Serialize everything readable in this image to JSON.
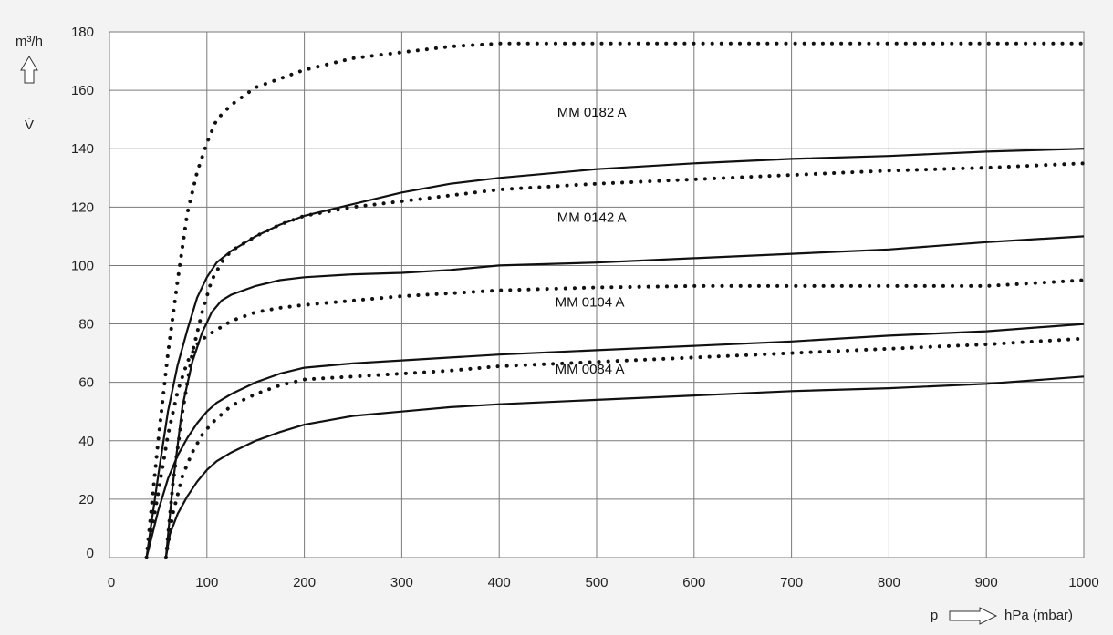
{
  "chart_data": {
    "type": "line",
    "ylabel": "m³/h",
    "ysymbol": "V̇",
    "xsymbol": "p",
    "xunit": "hPa (mbar)",
    "xlim": [
      0,
      1000
    ],
    "ylim": [
      0,
      180
    ],
    "xticks": [
      0,
      100,
      200,
      300,
      400,
      500,
      600,
      700,
      800,
      900,
      1000
    ],
    "yticks": [
      0,
      20,
      40,
      60,
      80,
      100,
      120,
      140,
      160,
      180
    ],
    "grid": true,
    "series": [
      {
        "name": "MM 0182 A",
        "style": "dotted",
        "x": [
          38,
          50,
          60,
          70,
          80,
          90,
          100,
          110,
          125,
          150,
          175,
          200,
          250,
          300,
          350,
          400,
          500,
          600,
          700,
          800,
          900,
          1000
        ],
        "y": [
          0,
          40,
          70,
          95,
          118,
          132,
          142,
          150,
          155,
          161,
          164,
          167,
          171,
          173,
          175,
          176,
          176,
          176,
          176,
          176,
          176,
          176
        ]
      },
      {
        "name": "MM 0142 A",
        "style": "solid",
        "x": [
          38,
          50,
          60,
          70,
          80,
          90,
          100,
          110,
          125,
          150,
          175,
          200,
          250,
          300,
          350,
          400,
          500,
          600,
          700,
          800,
          900,
          1000
        ],
        "y": [
          0,
          28,
          50,
          66,
          78,
          89,
          96,
          101,
          105,
          110,
          114,
          117,
          121,
          125,
          128,
          130,
          133,
          135,
          136.5,
          137.5,
          139,
          140
        ]
      },
      {
        "name": "MM 0142 A",
        "style": "dotted",
        "x": [
          58,
          65,
          75,
          85,
          95,
          105,
          115,
          125,
          150,
          175,
          200,
          250,
          300,
          350,
          400,
          500,
          600,
          700,
          800,
          900,
          1000
        ],
        "y": [
          0,
          25,
          50,
          70,
          84,
          95,
          101,
          105,
          110,
          114,
          117,
          120,
          122,
          124,
          126,
          128,
          129.5,
          131,
          132.5,
          133.5,
          135
        ]
      },
      {
        "name": "MM 0104 A",
        "style": "solid",
        "x": [
          58,
          65,
          75,
          85,
          95,
          105,
          115,
          125,
          150,
          175,
          200,
          250,
          300,
          350,
          400,
          500,
          600,
          700,
          800,
          900,
          1000
        ],
        "y": [
          0,
          25,
          52,
          67,
          77,
          84,
          88,
          90,
          93,
          95,
          96,
          97,
          97.5,
          98.5,
          100,
          101,
          102.5,
          104,
          105.5,
          108,
          110
        ]
      },
      {
        "name": "MM 0104 A",
        "style": "dotted",
        "x": [
          38,
          50,
          60,
          70,
          80,
          90,
          100,
          110,
          125,
          150,
          175,
          200,
          250,
          300,
          350,
          400,
          500,
          600,
          700,
          800,
          900,
          1000
        ],
        "y": [
          0,
          22,
          42,
          57,
          67,
          73,
          76,
          78,
          81,
          84,
          85.5,
          86.5,
          88,
          89.5,
          90.5,
          91.5,
          92.5,
          93,
          93,
          93,
          93,
          95
        ]
      },
      {
        "name": "MM 0084 A",
        "style": "solid",
        "x": [
          38,
          50,
          60,
          70,
          80,
          90,
          100,
          110,
          125,
          150,
          175,
          200,
          250,
          300,
          350,
          400,
          500,
          600,
          700,
          800,
          900,
          1000
        ],
        "y": [
          0,
          16,
          27,
          35,
          41,
          46,
          50,
          53,
          56,
          60,
          63,
          65,
          66.5,
          67.5,
          68.5,
          69.5,
          71,
          72.5,
          74,
          76,
          77.5,
          80
        ]
      },
      {
        "name": "MM 0084 A",
        "style": "dotted",
        "x": [
          58,
          65,
          75,
          85,
          95,
          105,
          115,
          125,
          150,
          175,
          200,
          250,
          300,
          350,
          400,
          500,
          600,
          700,
          800,
          900,
          1000
        ],
        "y": [
          0,
          15,
          28,
          36,
          42,
          46,
          49,
          52,
          56,
          59,
          61,
          62,
          63,
          64,
          65.5,
          67,
          68.5,
          70,
          71.5,
          73,
          75
        ]
      },
      {
        "name": "MM 0084 A",
        "style": "solid",
        "x": [
          58,
          62,
          70,
          80,
          90,
          100,
          110,
          125,
          150,
          175,
          200,
          250,
          300,
          350,
          400,
          500,
          600,
          700,
          800,
          900,
          1000
        ],
        "y": [
          0,
          8,
          15,
          21,
          26,
          30,
          33,
          36,
          40,
          43,
          45.5,
          48.5,
          50,
          51.5,
          52.5,
          54,
          55.5,
          57,
          58,
          59.5,
          62
        ]
      }
    ],
    "annotations": [
      {
        "text": "MM 0182 A",
        "x": 495,
        "y": 151
      },
      {
        "text": "MM 0142 A",
        "x": 495,
        "y": 115
      },
      {
        "text": "MM 0104 A",
        "x": 493,
        "y": 86
      },
      {
        "text": "MM 0084 A",
        "x": 493,
        "y": 63
      }
    ]
  }
}
